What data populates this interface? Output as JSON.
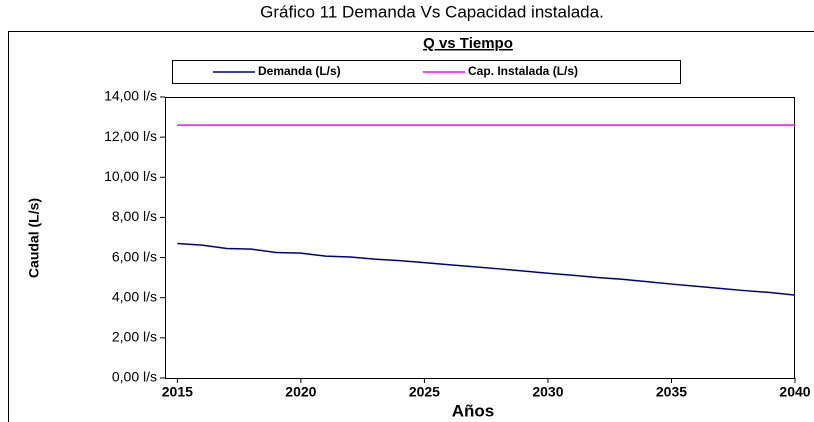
{
  "caption": "Gráfico 11  Demanda Vs Capacidad instalada.",
  "chart_data": {
    "type": "line",
    "title": "Q vs Tiempo",
    "x": [
      2015,
      2016,
      2017,
      2018,
      2019,
      2020,
      2021,
      2022,
      2023,
      2024,
      2025,
      2026,
      2027,
      2028,
      2029,
      2030,
      2031,
      2032,
      2033,
      2034,
      2035,
      2036,
      2037,
      2038,
      2039,
      2040
    ],
    "series": [
      {
        "name": "Demanda (L/s)",
        "color": "#000080",
        "values": [
          6.7,
          6.62,
          6.45,
          6.42,
          6.25,
          6.22,
          6.07,
          6.03,
          5.92,
          5.85,
          5.75,
          5.64,
          5.54,
          5.44,
          5.33,
          5.22,
          5.12,
          5.01,
          4.92,
          4.8,
          4.68,
          4.57,
          4.46,
          4.35,
          4.26,
          4.13
        ]
      },
      {
        "name": "Cap. Instalada (L/s)",
        "color": "#ff00ff",
        "values": [
          12.6,
          12.6,
          12.6,
          12.6,
          12.6,
          12.6,
          12.6,
          12.6,
          12.6,
          12.6,
          12.6,
          12.6,
          12.6,
          12.6,
          12.6,
          12.6,
          12.6,
          12.6,
          12.6,
          12.6,
          12.6,
          12.6,
          12.6,
          12.6,
          12.6,
          12.6
        ]
      }
    ],
    "xlabel": "Años",
    "ylabel": "Caudal (L/s)",
    "xlim": [
      2014.5,
      2040
    ],
    "xticks": [
      2015,
      2020,
      2025,
      2030,
      2035,
      2040
    ],
    "ylim": [
      0,
      14
    ],
    "yticks": [
      {
        "value": 0,
        "label": "0,00 l/s"
      },
      {
        "value": 2,
        "label": "2,00 l/s"
      },
      {
        "value": 4,
        "label": "4,00 l/s"
      },
      {
        "value": 6,
        "label": "6,00 l/s"
      },
      {
        "value": 8,
        "label": "8,00 l/s"
      },
      {
        "value": 10,
        "label": "10,00 l/s"
      },
      {
        "value": 12,
        "label": "12,00 l/s"
      },
      {
        "value": 14,
        "label": "14,00 l/s"
      }
    ],
    "grid": false,
    "legend": "top"
  }
}
